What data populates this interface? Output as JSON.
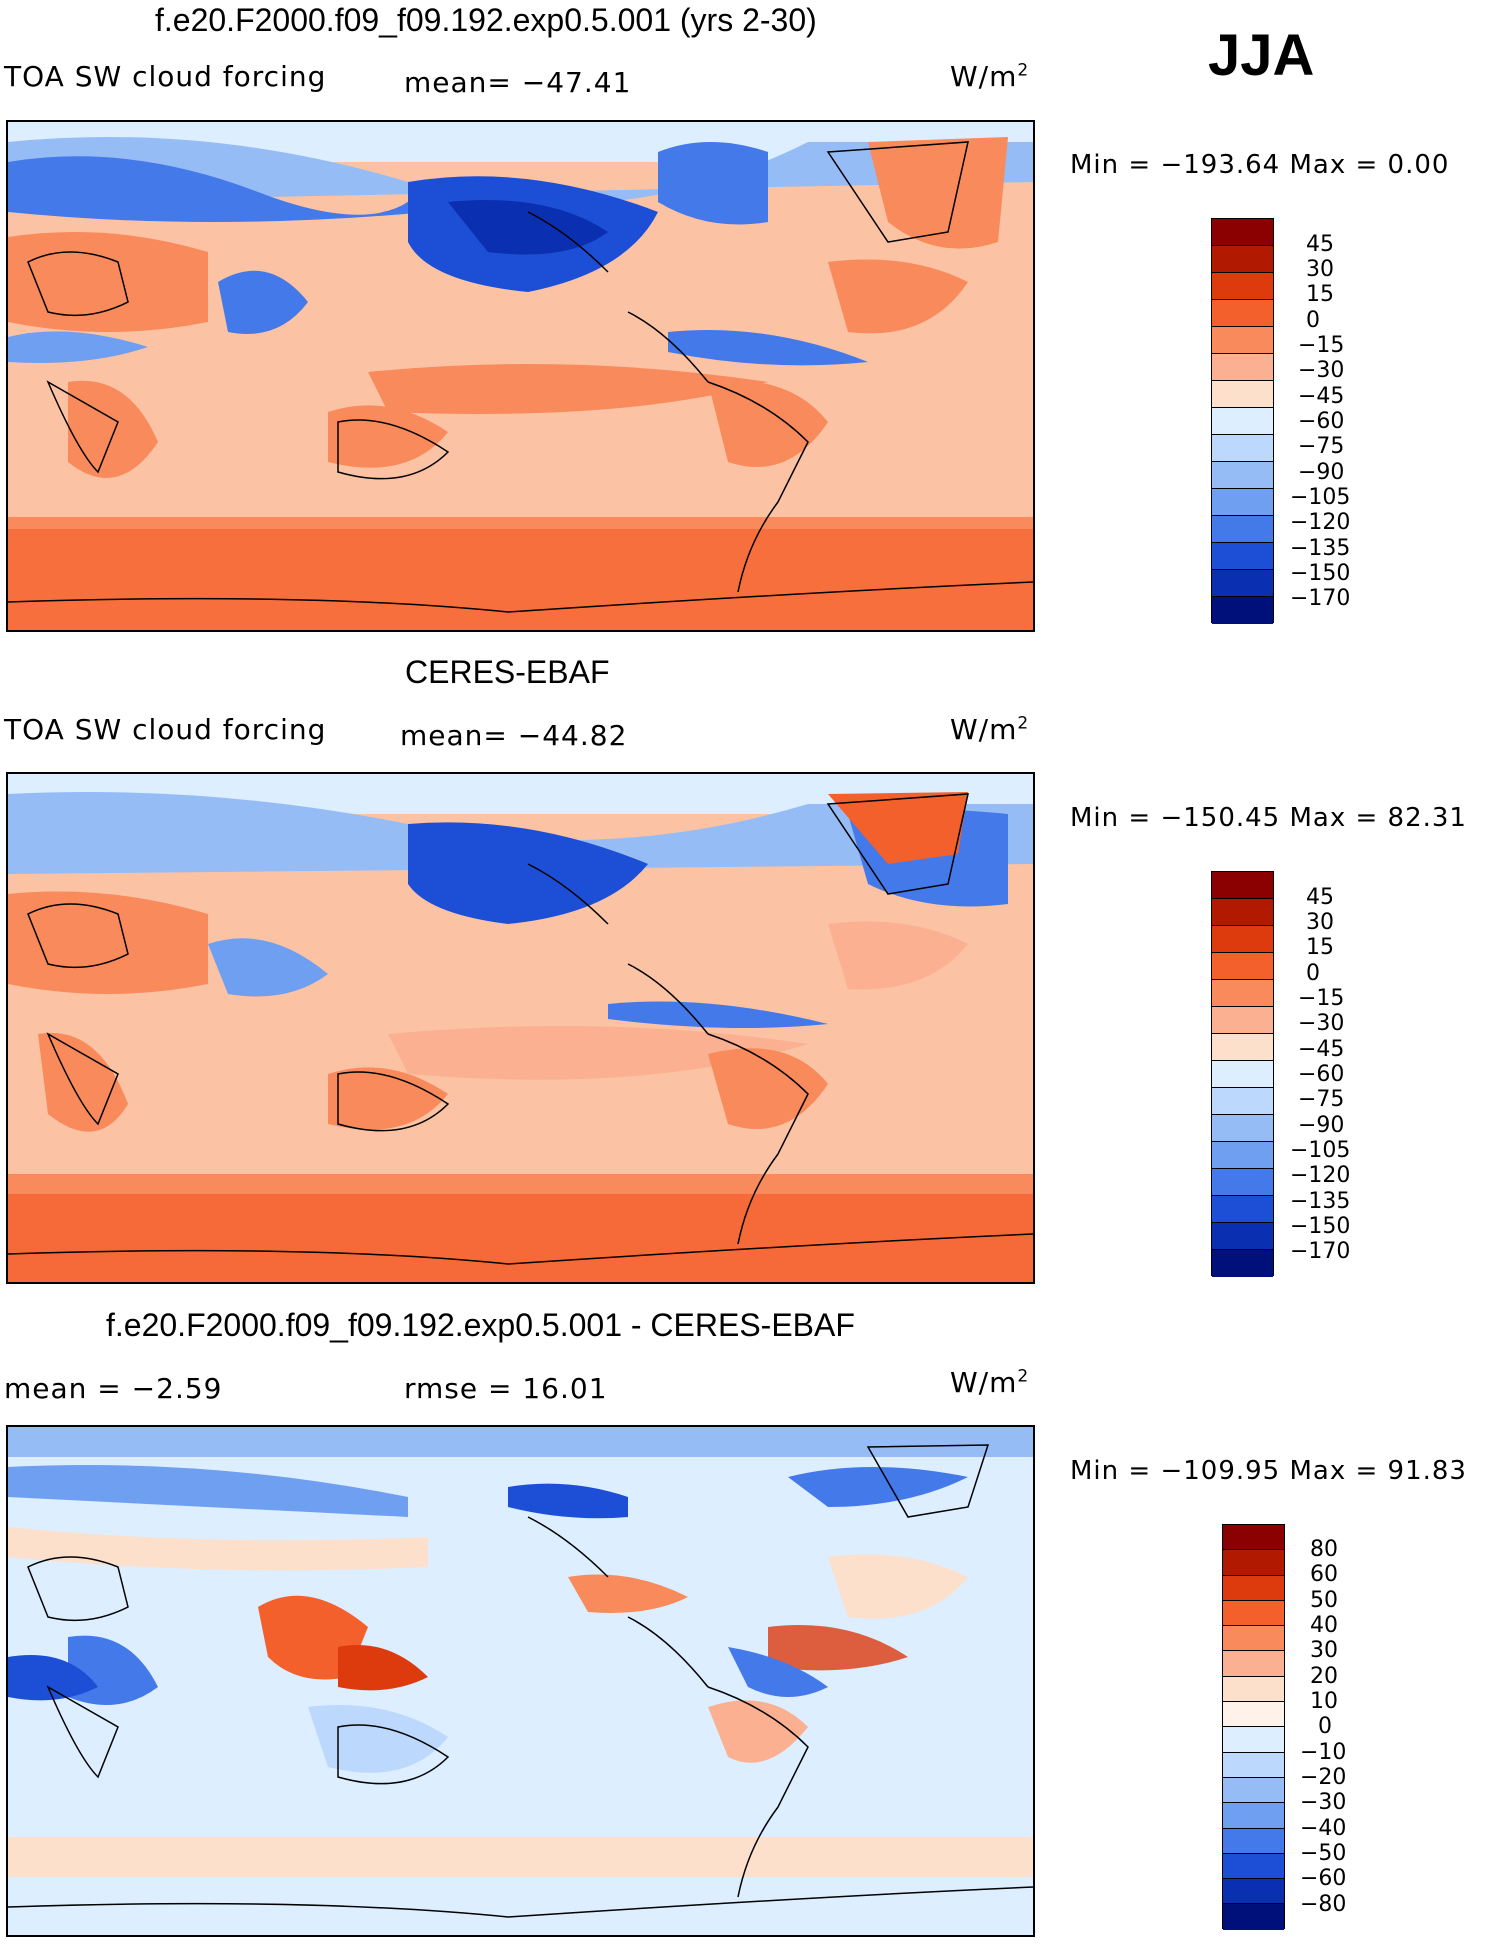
{
  "season": "JJA",
  "colors": {
    "abs_scale": [
      "#8b0000",
      "#b21a00",
      "#dd3a0e",
      "#f4602c",
      "#f88a5c",
      "#fbb091",
      "#fde0cc",
      "#dceeff",
      "#bcd8fc",
      "#96bcf6",
      "#6f9ff0",
      "#4479ea",
      "#1c4fd6",
      "#0a2fb0",
      "#00107a"
    ],
    "diff_scale": [
      "#8b0000",
      "#b21a00",
      "#dd3a0e",
      "#f4602c",
      "#f88a5c",
      "#fbb091",
      "#fde0cc",
      "#fff2e8",
      "#dceeff",
      "#bcd8fc",
      "#96bcf6",
      "#6f9ff0",
      "#4479ea",
      "#1c4fd6",
      "#0a2fb0",
      "#00107a"
    ]
  },
  "panels": [
    {
      "title": "f.e20.F2000.f09_f09.192.exp0.5.001 (yrs 2-30)",
      "left_label": "TOA SW cloud forcing",
      "mean_label": "mean= −47.41",
      "units": "W/m",
      "units_sup": "2",
      "minmax": "Min  =  −193.64  Max  =     0.00",
      "ticks": [
        "45",
        "30",
        "15",
        "0",
        "−15",
        "−30",
        "−45",
        "−60",
        "−75",
        "−90",
        "−105",
        "−120",
        "−135",
        "−150",
        "−170"
      ]
    },
    {
      "title": "CERES-EBAF",
      "left_label": "TOA SW cloud forcing",
      "mean_label": "mean= −44.82",
      "units": "W/m",
      "units_sup": "2",
      "minmax": "Min  =  −150.45  Max  =   82.31",
      "ticks": [
        "45",
        "30",
        "15",
        "0",
        "−15",
        "−30",
        "−45",
        "−60",
        "−75",
        "−90",
        "−105",
        "−120",
        "−135",
        "−150",
        "−170"
      ]
    },
    {
      "title": "f.e20.F2000.f09_f09.192.exp0.5.001 - CERES-EBAF",
      "left_label": "mean  =   −2.59",
      "mean_label": "rmse  =   16.01",
      "units": "W/m",
      "units_sup": "2",
      "minmax": "Min  =  −109.95  Max  =   91.83",
      "ticks": [
        "80",
        "60",
        "50",
        "40",
        "30",
        "20",
        "10",
        "0",
        "−10",
        "−20",
        "−30",
        "−40",
        "−50",
        "−60",
        "−80"
      ]
    }
  ]
}
